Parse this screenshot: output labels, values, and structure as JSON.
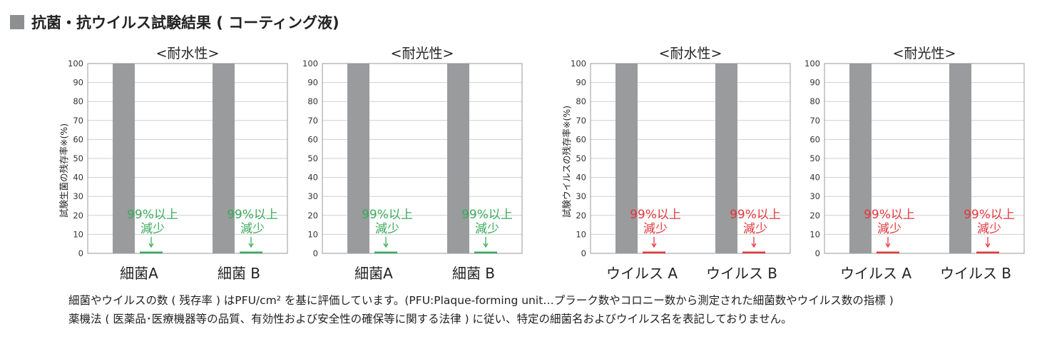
{
  "header": {
    "title": "抗菌・抗ウイルス試験結果 ( コーティング液)"
  },
  "colors": {
    "control": "#9a9b9d",
    "green": "#3aaa5c",
    "red": "#e0383e",
    "grid": "#cfcfcf"
  },
  "chart_data": [
    {
      "type": "bar",
      "title": "<耐水性>",
      "ylabel": "試験生菌の残存率※(%)",
      "ylim": [
        0,
        100
      ],
      "yticks": [
        0,
        10,
        20,
        30,
        40,
        50,
        60,
        70,
        80,
        90,
        100
      ],
      "categories": [
        "細菌A",
        "細菌 B"
      ],
      "series": [
        {
          "name": "control",
          "values": [
            100,
            100
          ]
        },
        {
          "name": "coated",
          "values": [
            0.8,
            0.8
          ]
        }
      ],
      "annotation": [
        "99%以上",
        "減少"
      ],
      "accent": "green"
    },
    {
      "type": "bar",
      "title": "<耐光性>",
      "ylabel": "",
      "ylim": [
        0,
        100
      ],
      "yticks": [
        0,
        10,
        20,
        30,
        40,
        50,
        60,
        70,
        80,
        90,
        100
      ],
      "categories": [
        "細菌A",
        "細菌 B"
      ],
      "series": [
        {
          "name": "control",
          "values": [
            100,
            100
          ]
        },
        {
          "name": "coated",
          "values": [
            0.8,
            0.8
          ]
        }
      ],
      "annotation": [
        "99%以上",
        "減少"
      ],
      "accent": "green"
    },
    {
      "type": "bar",
      "title": "<耐水性>",
      "ylabel": "試験ウイルスの残存率※(%)",
      "ylim": [
        0,
        100
      ],
      "yticks": [
        0,
        10,
        20,
        30,
        40,
        50,
        60,
        70,
        80,
        90,
        100
      ],
      "categories": [
        "ウイルス A",
        "ウイルス B"
      ],
      "series": [
        {
          "name": "control",
          "values": [
            100,
            100
          ]
        },
        {
          "name": "coated",
          "values": [
            0.8,
            0.8
          ]
        }
      ],
      "annotation": [
        "99%以上",
        "減少"
      ],
      "accent": "red"
    },
    {
      "type": "bar",
      "title": "<耐光性>",
      "ylabel": "",
      "ylim": [
        0,
        100
      ],
      "yticks": [
        0,
        10,
        20,
        30,
        40,
        50,
        60,
        70,
        80,
        90,
        100
      ],
      "categories": [
        "ウイルス A",
        "ウイルス B"
      ],
      "series": [
        {
          "name": "control",
          "values": [
            100,
            100
          ]
        },
        {
          "name": "coated",
          "values": [
            0.8,
            0.8
          ]
        }
      ],
      "annotation": [
        "99%以上",
        "減少"
      ],
      "accent": "red"
    }
  ],
  "notes": [
    "細菌やウイルスの数 ( 残存率 ) はPFU/cm² を基に評価しています。(PFU:Plaque-forming unit…プラーク数やコロニー数から測定された細菌数やウイルス数の指標 )",
    "薬機法 ( 医薬品･医療機器等の品質、有効性および安全性の確保等に関する法律 ) に従い、特定の細菌名およびウイルス名を表記しておりません。"
  ]
}
